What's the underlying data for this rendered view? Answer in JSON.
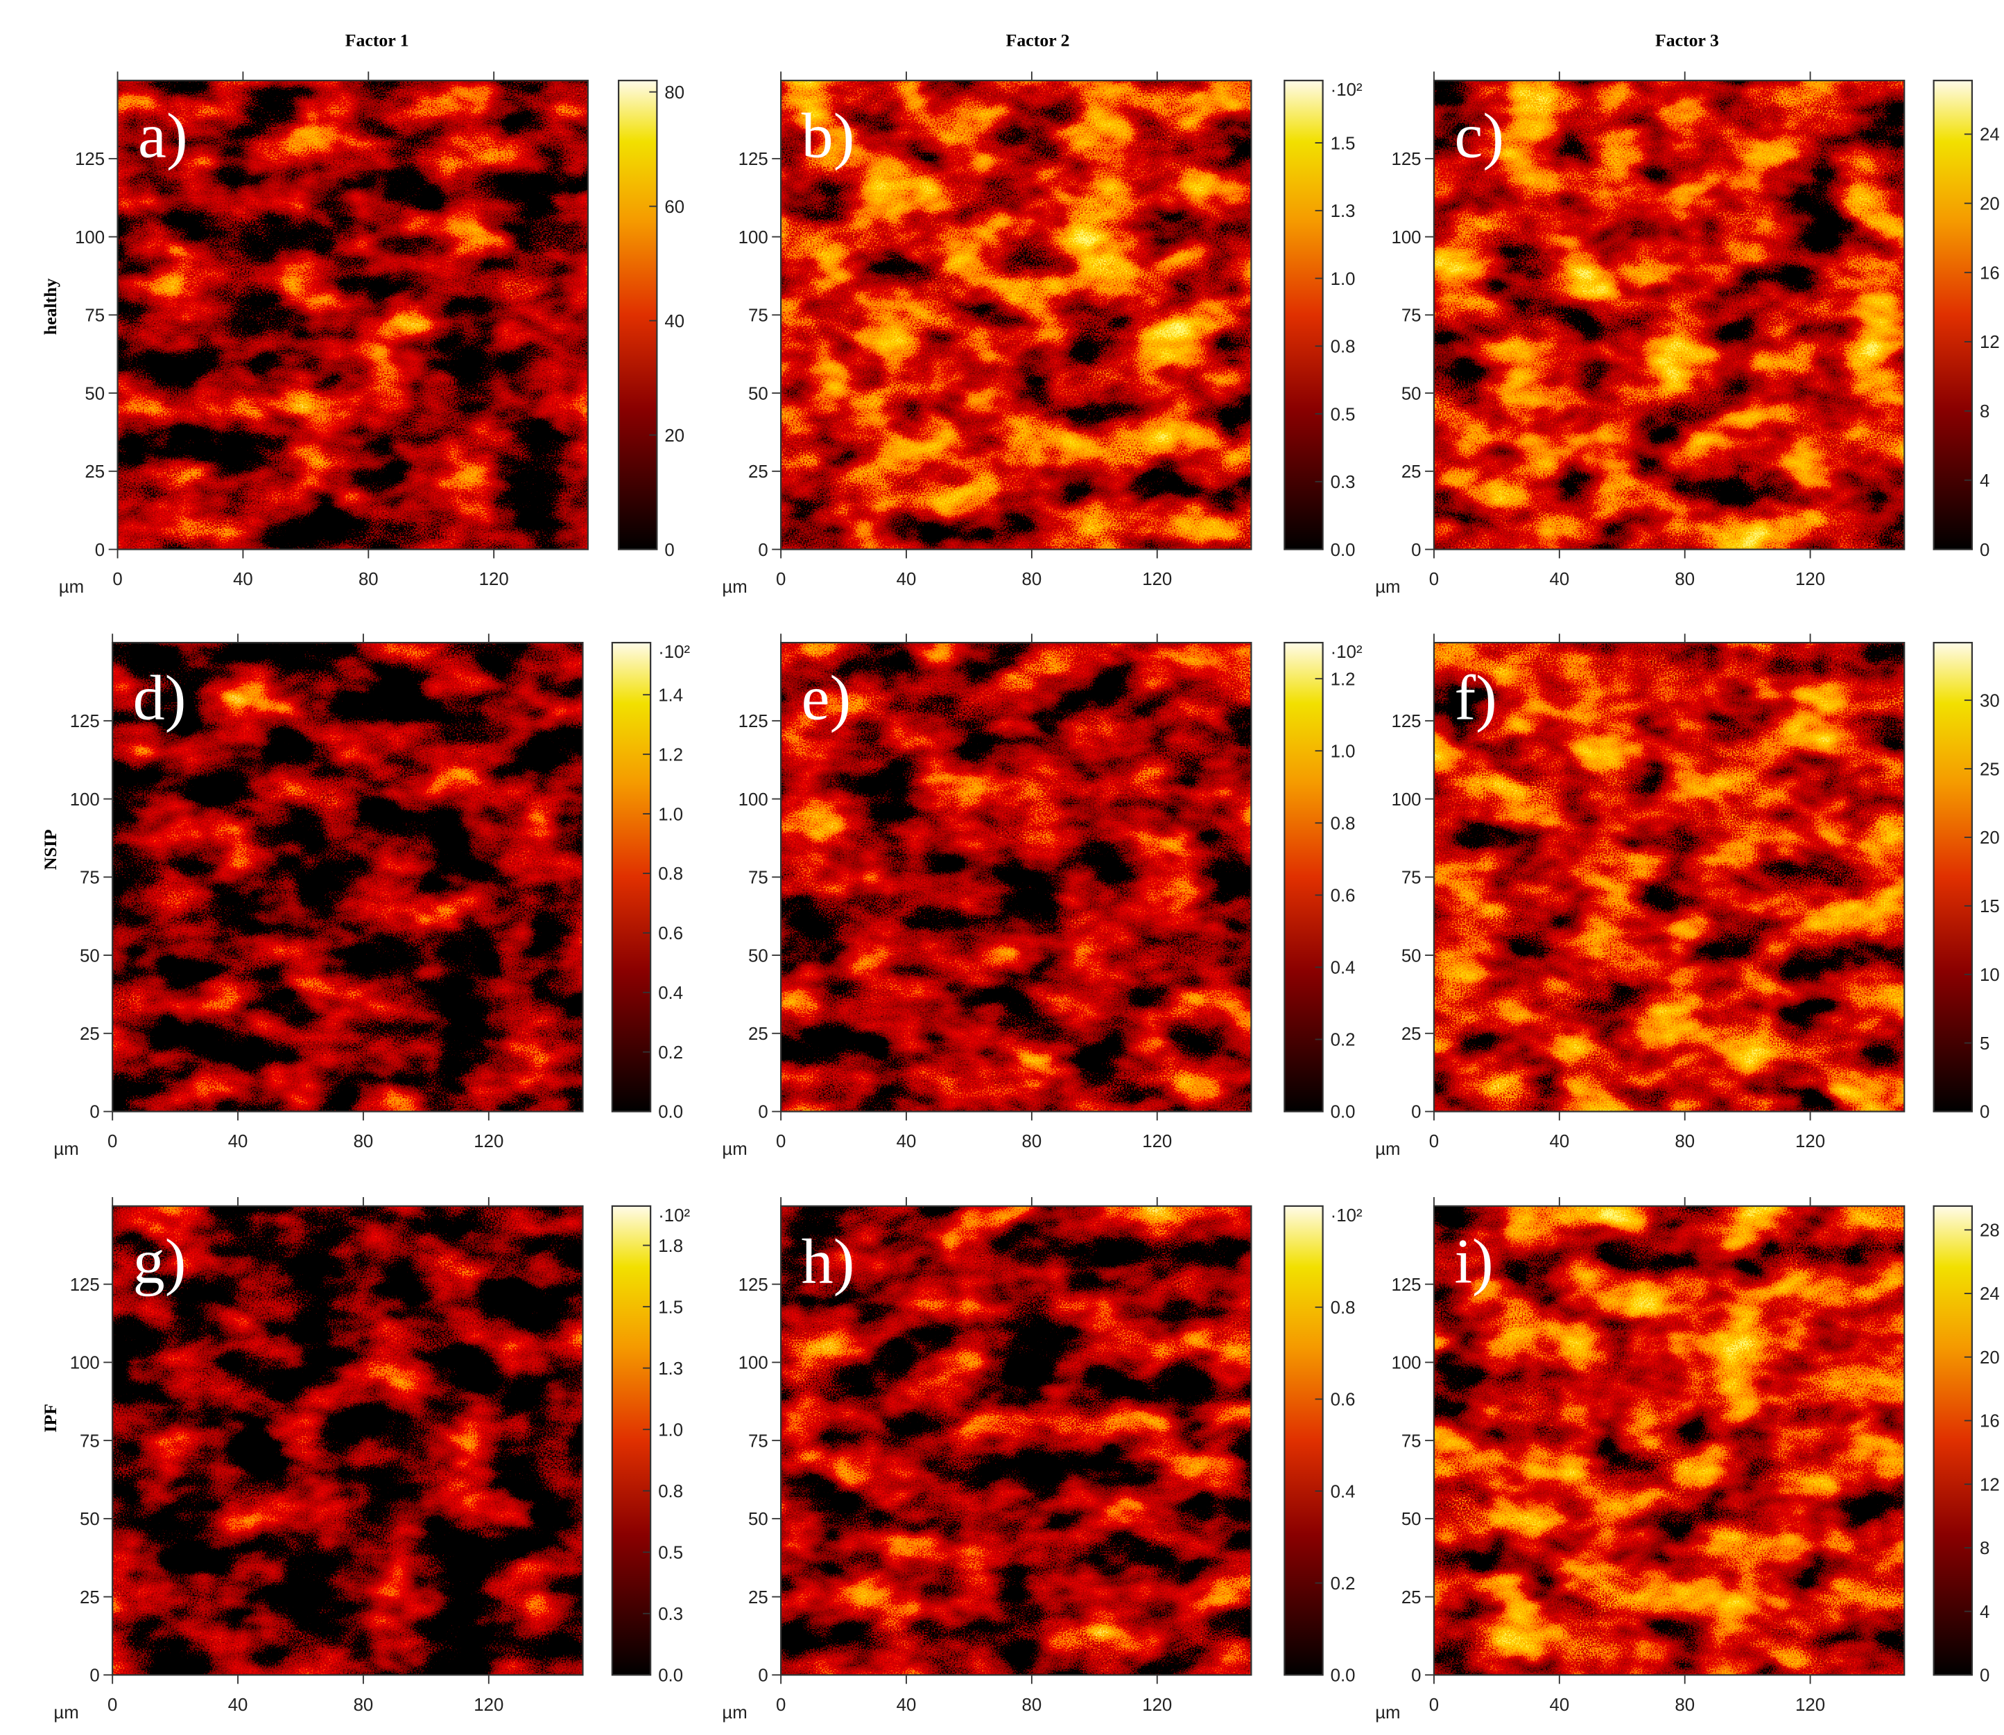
{
  "column_titles": [
    "Factor 1",
    "Factor 2",
    "Factor 3"
  ],
  "row_labels": [
    "healthy",
    "NSIP",
    "IPF"
  ],
  "chart_data": [
    {
      "type": "heatmap",
      "label": "a)",
      "xlabel": "µm",
      "xlim": [
        0,
        150
      ],
      "ylim": [
        0,
        150
      ],
      "xticks": [
        0,
        40,
        80,
        120
      ],
      "yticks": [
        0,
        25,
        50,
        75,
        100,
        125
      ],
      "colorbar": {
        "lim": [
          0,
          82
        ],
        "ticks": [
          0,
          20,
          40,
          60,
          80
        ]
      }
    },
    {
      "type": "heatmap",
      "label": "b)",
      "xlabel": "µm",
      "xlim": [
        0,
        150
      ],
      "ylim": [
        0,
        150
      ],
      "xticks": [
        0,
        40,
        80,
        120
      ],
      "yticks": [
        0,
        25,
        50,
        75,
        100,
        125
      ],
      "colorbar": {
        "lim": [
          0,
          1.73
        ],
        "multiplier": "·10²",
        "ticks": [
          {
            "value": 0,
            "label": "0.0"
          },
          {
            "value": 0.25,
            "label": "0.3"
          },
          {
            "value": 0.5,
            "label": "0.5"
          },
          {
            "value": 0.75,
            "label": "0.8"
          },
          {
            "value": 1,
            "label": "1.0"
          },
          {
            "value": 1.25,
            "label": "1.3"
          },
          {
            "value": 1.5,
            "label": "1.5"
          }
        ]
      }
    },
    {
      "type": "heatmap",
      "label": "c)",
      "xlabel": "µm",
      "xlim": [
        0,
        150
      ],
      "ylim": [
        0,
        150
      ],
      "xticks": [
        0,
        40,
        80,
        120
      ],
      "yticks": [
        0,
        25,
        50,
        75,
        100,
        125
      ],
      "colorbar": {
        "lim": [
          0,
          27.1
        ],
        "ticks": [
          0,
          4,
          8,
          12,
          16,
          20,
          24
        ]
      }
    },
    {
      "type": "heatmap",
      "label": "d)",
      "xlabel": "µm",
      "xlim": [
        0,
        150
      ],
      "ylim": [
        0,
        150
      ],
      "xticks": [
        0,
        40,
        80,
        120
      ],
      "yticks": [
        0,
        25,
        50,
        75,
        100,
        125
      ],
      "colorbar": {
        "lim": [
          0,
          1.575
        ],
        "multiplier": "·10²",
        "ticks": [
          {
            "value": 0,
            "label": "0.0"
          },
          0.2,
          0.4,
          0.6,
          0.8,
          {
            "value": 1,
            "label": "1.0"
          },
          1.2,
          1.4
        ]
      }
    },
    {
      "type": "heatmap",
      "label": "e)",
      "xlabel": "µm",
      "xlim": [
        0,
        150
      ],
      "ylim": [
        0,
        150
      ],
      "xticks": [
        0,
        40,
        80,
        120
      ],
      "yticks": [
        0,
        25,
        50,
        75,
        100,
        125
      ],
      "colorbar": {
        "lim": [
          0,
          1.3
        ],
        "multiplier": "·10²",
        "ticks": [
          {
            "value": 0,
            "label": "0.0"
          },
          0.2,
          0.4,
          0.6,
          0.8,
          {
            "value": 1,
            "label": "1.0"
          },
          1.2
        ]
      }
    },
    {
      "type": "heatmap",
      "label": "f)",
      "xlabel": "µm",
      "xlim": [
        0,
        150
      ],
      "ylim": [
        0,
        150
      ],
      "xticks": [
        0,
        40,
        80,
        120
      ],
      "yticks": [
        0,
        25,
        50,
        75,
        100,
        125
      ],
      "colorbar": {
        "lim": [
          0,
          34.2
        ],
        "ticks": [
          0,
          5,
          10,
          15,
          20,
          25,
          30
        ]
      }
    },
    {
      "type": "heatmap",
      "label": "g)",
      "xlabel": "µm",
      "xlim": [
        0,
        150
      ],
      "ylim": [
        0,
        150
      ],
      "xticks": [
        0,
        40,
        80,
        120
      ],
      "yticks": [
        0,
        25,
        50,
        75,
        100,
        125
      ],
      "colorbar": {
        "lim": [
          0,
          1.91
        ],
        "multiplier": "·10²",
        "ticks": [
          {
            "value": 0,
            "label": "0.0"
          },
          {
            "value": 0.25,
            "label": "0.3"
          },
          {
            "value": 0.5,
            "label": "0.5"
          },
          {
            "value": 0.75,
            "label": "0.8"
          },
          {
            "value": 1,
            "label": "1.0"
          },
          {
            "value": 1.25,
            "label": "1.3"
          },
          {
            "value": 1.5,
            "label": "1.5"
          },
          {
            "value": 1.75,
            "label": "1.8"
          }
        ]
      }
    },
    {
      "type": "heatmap",
      "label": "h)",
      "xlabel": "µm",
      "xlim": [
        0,
        150
      ],
      "ylim": [
        0,
        150
      ],
      "xticks": [
        0,
        40,
        80,
        120
      ],
      "yticks": [
        0,
        25,
        50,
        75,
        100,
        125
      ],
      "colorbar": {
        "lim": [
          0,
          1.02
        ],
        "multiplier": "·10²",
        "ticks": [
          {
            "value": 0,
            "label": "0.0"
          },
          0.2,
          0.4,
          0.6,
          0.8
        ]
      }
    },
    {
      "type": "heatmap",
      "label": "i)",
      "xlabel": "µm",
      "xlim": [
        0,
        150
      ],
      "ylim": [
        0,
        150
      ],
      "xticks": [
        0,
        40,
        80,
        120
      ],
      "yticks": [
        0,
        25,
        50,
        75,
        100,
        125
      ],
      "colorbar": {
        "lim": [
          0,
          29.5
        ],
        "ticks": [
          0,
          4,
          8,
          12,
          16,
          20,
          24,
          28
        ]
      }
    }
  ]
}
